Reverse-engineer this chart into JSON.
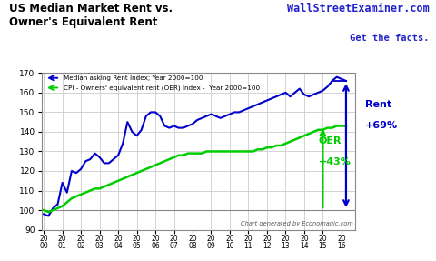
{
  "title_line1": "US Median Market Rent vs.",
  "title_line2": "Owner's Equivalent Rent",
  "watermark_line1": "WallStreetExaminer.com",
  "watermark_line2": "Get the facts.",
  "footnote": "Chart generated by Economagic.com",
  "ylim": [
    90,
    170
  ],
  "bg_color": "#ffffff",
  "grid_color": "#cccccc",
  "legend1_label": "Median asking Rent Index; Year 2000=100",
  "legend2_label": "CPI - Owners' equivalent rent (OER) Index -  Year 2000=100",
  "rent_color": "#0000cc",
  "oer_color": "#00cc00",
  "xtick_labels": [
    "20\n00",
    "20\n01",
    "20\n02",
    "20\n03",
    "20\n04",
    "20\n05",
    "20\n06",
    "20\n07",
    "20\n08",
    "20\n09",
    "20\n10",
    "20\n11",
    "20\n12",
    "20\n13",
    "20\n14",
    "20\n15",
    "20\n16"
  ],
  "rent_data": [
    98,
    97,
    101,
    103,
    114,
    109,
    120,
    119,
    121,
    125,
    126,
    129,
    127,
    124,
    124,
    126,
    128,
    134,
    145,
    140,
    138,
    141,
    148,
    150,
    150,
    148,
    143,
    142,
    143,
    142,
    142,
    143,
    144,
    146,
    147,
    148,
    149,
    148,
    147,
    148,
    149,
    150,
    150,
    151,
    152,
    153,
    154,
    155,
    156,
    157,
    158,
    159,
    160,
    158,
    160,
    162,
    159,
    158,
    159,
    160,
    161,
    163,
    166,
    168,
    167,
    166
  ],
  "oer_data": [
    100,
    99,
    100,
    101,
    102,
    104,
    106,
    107,
    108,
    109,
    110,
    111,
    111,
    112,
    113,
    114,
    115,
    116,
    117,
    118,
    119,
    120,
    121,
    122,
    123,
    124,
    125,
    126,
    127,
    128,
    128,
    129,
    129,
    129,
    129,
    130,
    130,
    130,
    130,
    130,
    130,
    130,
    130,
    130,
    130,
    130,
    131,
    131,
    132,
    132,
    133,
    133,
    134,
    135,
    136,
    137,
    138,
    139,
    140,
    141,
    141,
    142,
    142,
    143,
    143,
    143
  ]
}
